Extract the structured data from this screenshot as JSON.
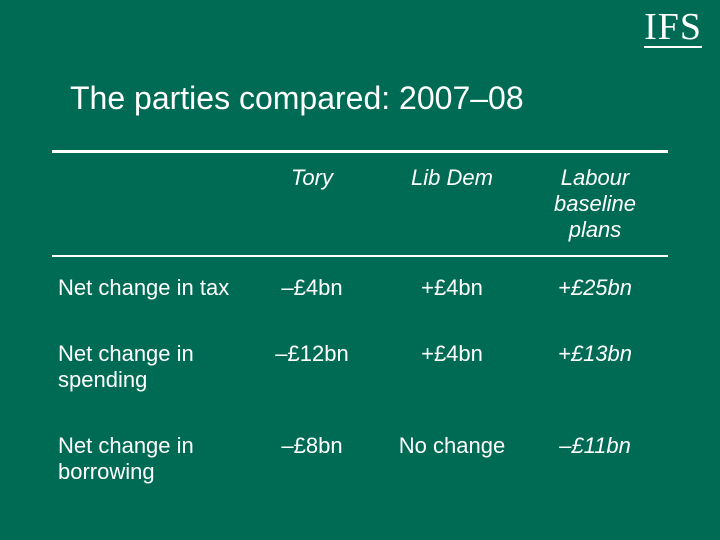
{
  "logo_text": "IFS",
  "title": "The parties compared: 2007–08",
  "columns": {
    "tory": "Tory",
    "libdem": "Lib Dem",
    "labour": "Labour baseline plans"
  },
  "rows": [
    {
      "label": "Net change in tax",
      "tory": "–£4bn",
      "libdem": "+£4bn",
      "labour": "+£25bn"
    },
    {
      "label": "Net change in spending",
      "tory": "–£12bn",
      "libdem": "+£4bn",
      "labour": "+£13bn"
    },
    {
      "label": "Net change in borrowing",
      "tory": "–£8bn",
      "libdem": "No change",
      "labour": "–£11bn"
    }
  ],
  "colors": {
    "background": "#006b54",
    "text": "#ffffff",
    "border": "#ffffff"
  },
  "typography": {
    "title_fontsize": 32,
    "header_fontsize": 22,
    "cell_fontsize": 22,
    "logo_fontsize": 38
  }
}
